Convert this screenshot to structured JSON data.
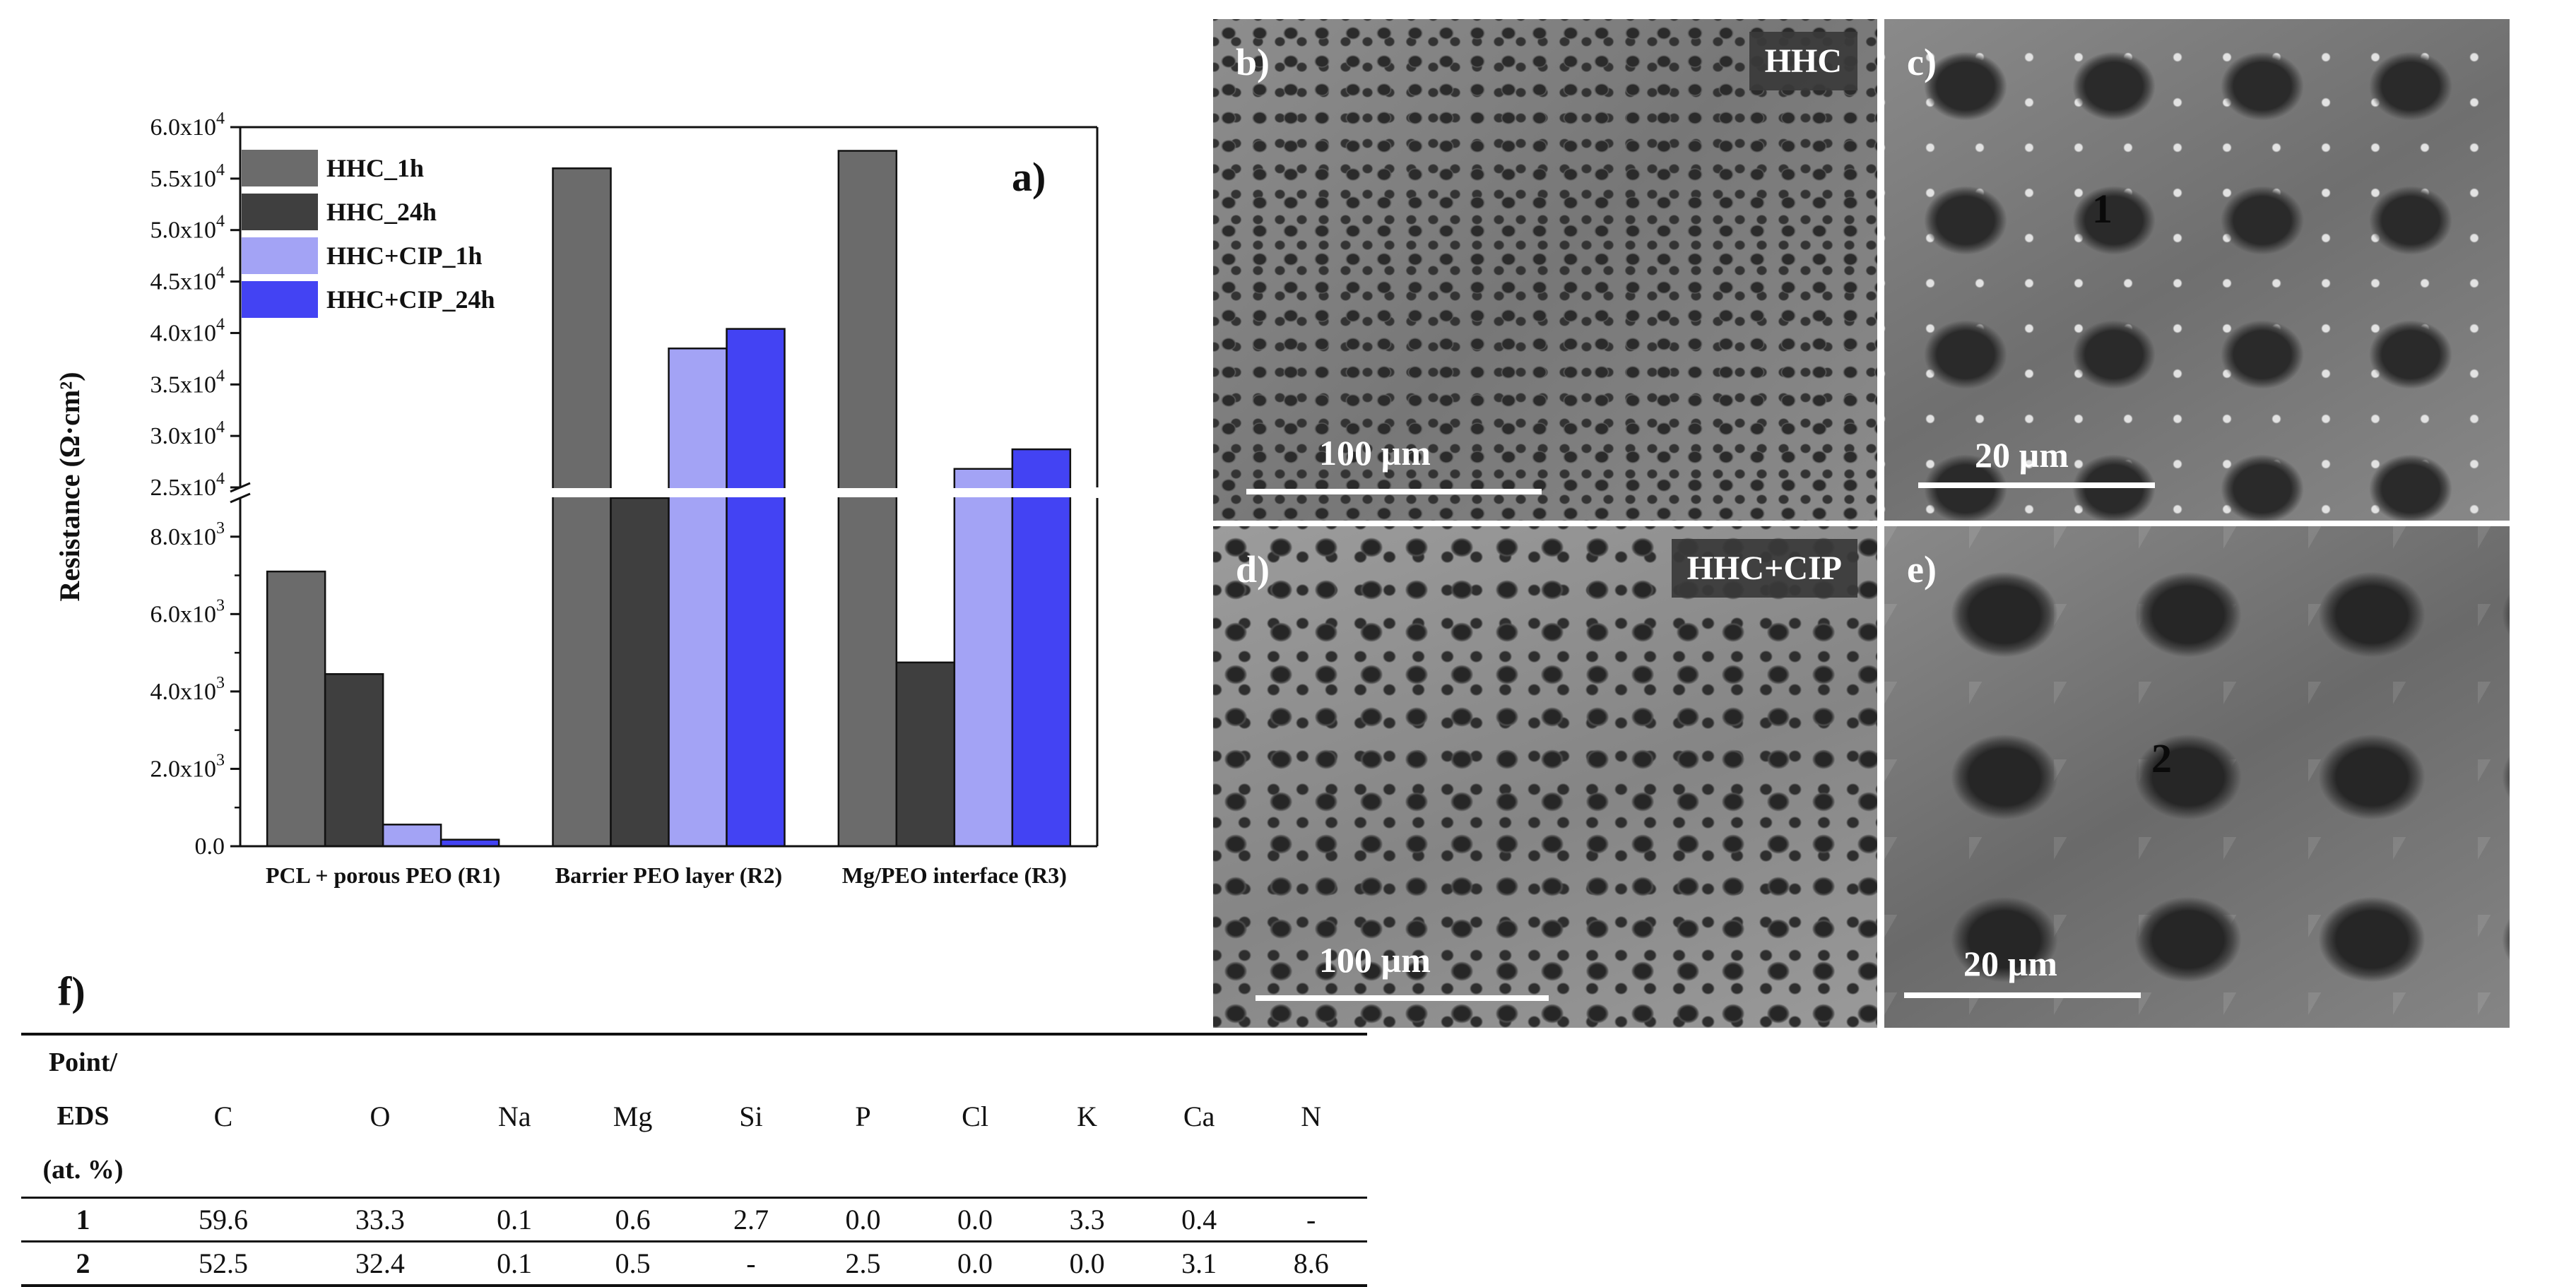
{
  "chart_data": {
    "type": "bar",
    "panel_label": "a)",
    "ylabel": "Resistance (Ω·cm²)",
    "categories": [
      "PCL + porous PEO (R1)",
      "Barrier PEO layer (R2)",
      "Mg/PEO interface (R3)"
    ],
    "series": [
      {
        "name": "HHC_1h",
        "color": "#6b6b6b",
        "values": [
          7100,
          56000,
          57700
        ]
      },
      {
        "name": "HHC_24h",
        "color": "#3f3f3f",
        "values": [
          4450,
          9200,
          4750
        ]
      },
      {
        "name": "HHC+CIP_1h",
        "color": "#a3a3f5",
        "values": [
          560,
          38500,
          26800
        ]
      },
      {
        "name": "HHC+CIP_24h",
        "color": "#4343f3",
        "values": [
          170,
          40400,
          28700
        ]
      }
    ],
    "axis_break": {
      "lower_range": [
        0,
        9000
      ],
      "upper_range": [
        25000,
        60000
      ]
    },
    "lower_ticks": [
      {
        "value": 0,
        "mantissa": "0.0",
        "exp": ""
      },
      {
        "value": 2000,
        "mantissa": "2.0x10",
        "exp": "3"
      },
      {
        "value": 4000,
        "mantissa": "4.0x10",
        "exp": "3"
      },
      {
        "value": 6000,
        "mantissa": "6.0x10",
        "exp": "3"
      },
      {
        "value": 8000,
        "mantissa": "8.0x10",
        "exp": "3"
      }
    ],
    "upper_ticks": [
      {
        "value": 25000,
        "mantissa": "2.5x10",
        "exp": "4"
      },
      {
        "value": 30000,
        "mantissa": "3.0x10",
        "exp": "4"
      },
      {
        "value": 35000,
        "mantissa": "3.5x10",
        "exp": "4"
      },
      {
        "value": 40000,
        "mantissa": "4.0x10",
        "exp": "4"
      },
      {
        "value": 45000,
        "mantissa": "4.5x10",
        "exp": "4"
      },
      {
        "value": 50000,
        "mantissa": "5.0x10",
        "exp": "4"
      },
      {
        "value": 55000,
        "mantissa": "5.5x10",
        "exp": "4"
      },
      {
        "value": 60000,
        "mantissa": "6.0x10",
        "exp": "4"
      }
    ],
    "legend_position": "top-left"
  },
  "micrographs": {
    "b": {
      "letter": "b)",
      "tag": "HHC",
      "scale": "100 µm"
    },
    "c": {
      "letter": "c)",
      "scale": "20 µm",
      "point": "1"
    },
    "d": {
      "letter": "d)",
      "tag": "HHC+CIP",
      "scale": "100 µm"
    },
    "e": {
      "letter": "e)",
      "scale": "20 µm",
      "point": "2"
    }
  },
  "table": {
    "label": "f)",
    "header_first": [
      "Point/",
      "EDS",
      "(at. %)"
    ],
    "columns": [
      "C",
      "O",
      "Na",
      "Mg",
      "Si",
      "P",
      "Cl",
      "K",
      "Ca",
      "N"
    ],
    "rows": [
      {
        "point": "1",
        "values": [
          "59.6",
          "33.3",
          "0.1",
          "0.6",
          "2.7",
          "0.0",
          "0.0",
          "3.3",
          "0.4",
          "-"
        ]
      },
      {
        "point": "2",
        "values": [
          "52.5",
          "32.4",
          "0.1",
          "0.5",
          "-",
          "2.5",
          "0.0",
          "0.0",
          "3.1",
          "8.6"
        ]
      }
    ]
  }
}
